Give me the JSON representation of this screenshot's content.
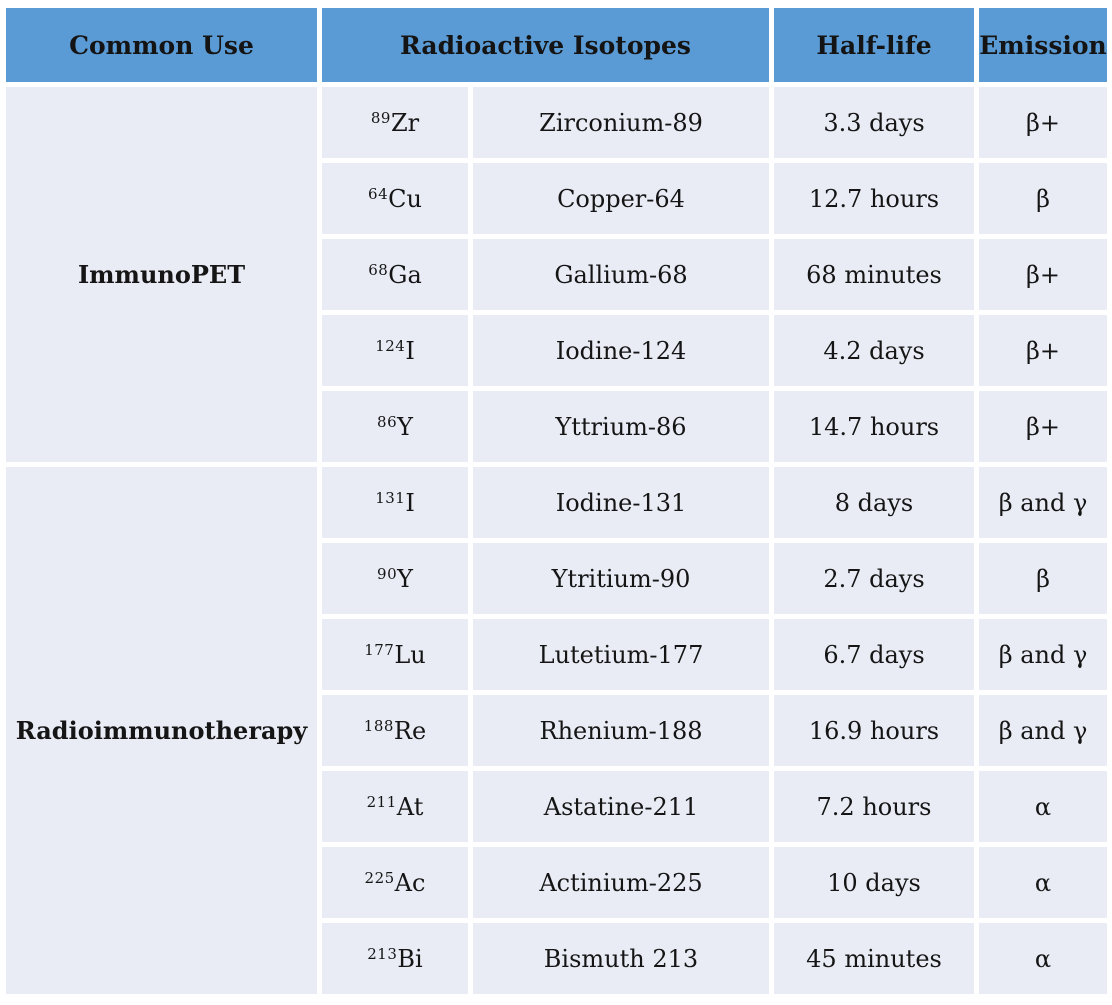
{
  "table": {
    "colors": {
      "header_bg": "#5B9BD5",
      "cell_bg": "#E9ECF5",
      "separator": "#FFFFFF",
      "text": "#151515"
    },
    "headers": {
      "common_use": "Common Use",
      "radioactive_isotopes": "Radioactive Isotopes",
      "half_life": "Half-life",
      "emission": "Emission"
    },
    "groups": [
      {
        "common_use": "ImmunoPET",
        "rows": [
          {
            "mass": "89",
            "symbol": "Zr",
            "name": "Zirconium-89",
            "half_life": "3.3 days",
            "emission": "β+"
          },
          {
            "mass": "64",
            "symbol": "Cu",
            "name": "Copper-64",
            "half_life": "12.7 hours",
            "emission": "β"
          },
          {
            "mass": "68",
            "symbol": "Ga",
            "name": "Gallium-68",
            "half_life": "68 minutes",
            "emission": "β+"
          },
          {
            "mass": "124",
            "symbol": "I",
            "name": "Iodine-124",
            "half_life": "4.2 days",
            "emission": "β+"
          },
          {
            "mass": "86",
            "symbol": "Y",
            "name": "Yttrium-86",
            "half_life": "14.7 hours",
            "emission": "β+"
          }
        ]
      },
      {
        "common_use": "Radioimmunotherapy",
        "rows": [
          {
            "mass": "131",
            "symbol": "I",
            "name": "Iodine-131",
            "half_life": "8 days",
            "emission": "β and γ"
          },
          {
            "mass": "90",
            "symbol": "Y",
            "name": "Ytritium-90",
            "half_life": "2.7 days",
            "emission": "β"
          },
          {
            "mass": "177",
            "symbol": "Lu",
            "name": "Lutetium-177",
            "half_life": "6.7 days",
            "emission": "β and γ"
          },
          {
            "mass": "188",
            "symbol": "Re",
            "name": "Rhenium-188",
            "half_life": "16.9 hours",
            "emission": "β and γ"
          },
          {
            "mass": "211",
            "symbol": "At",
            "name": "Astatine-211",
            "half_life": "7.2 hours",
            "emission": "α"
          },
          {
            "mass": "225",
            "symbol": "Ac",
            "name": "Actinium-225",
            "half_life": "10 days",
            "emission": "α"
          },
          {
            "mass": "213",
            "symbol": "Bi",
            "name": "Bismuth 213",
            "half_life": "45 minutes",
            "emission": "α"
          }
        ]
      }
    ]
  }
}
